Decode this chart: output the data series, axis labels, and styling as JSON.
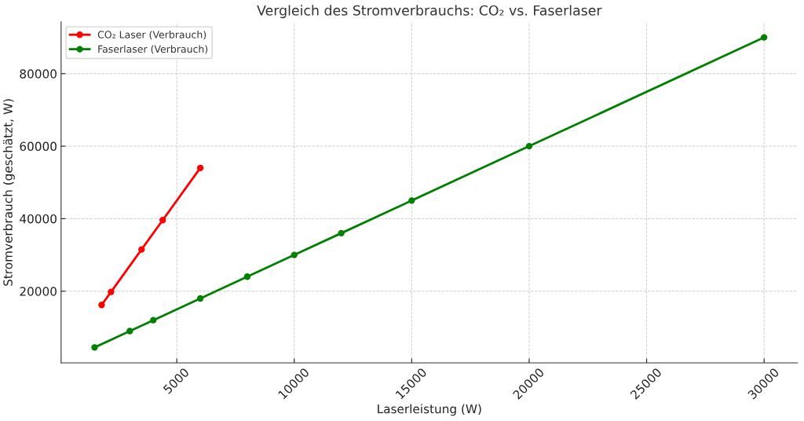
{
  "chart_data": {
    "type": "line",
    "title": "Vergleich des Stromverbrauchs: CO₂ vs. Faserlaser",
    "xlabel": "Laserleistung (W)",
    "ylabel": "Stromverbrauch (geschätzt, W)",
    "series": [
      {
        "name": "CO₂ Laser (Verbrauch)",
        "color": "#ff0000",
        "x": [
          1800,
          2200,
          3500,
          4400,
          6000
        ],
        "values": [
          16200,
          19800,
          31500,
          39600,
          54000
        ]
      },
      {
        "name": "Faserlaser (Verbrauch)",
        "color": "#008000",
        "x": [
          1500,
          3000,
          4000,
          6000,
          8000,
          10000,
          12000,
          15000,
          20000,
          30000
        ],
        "values": [
          4500,
          9000,
          12000,
          18000,
          24000,
          30000,
          36000,
          45000,
          60000,
          90000
        ]
      }
    ],
    "xlim": [
      75,
      31425
    ],
    "ylim": [
      225,
      94275
    ],
    "xticks": [
      5000,
      10000,
      15000,
      20000,
      25000,
      30000
    ],
    "yticks": [
      20000,
      40000,
      60000,
      80000
    ],
    "grid": true,
    "legend": "top left",
    "marker": "circle",
    "line_style": "solid"
  }
}
